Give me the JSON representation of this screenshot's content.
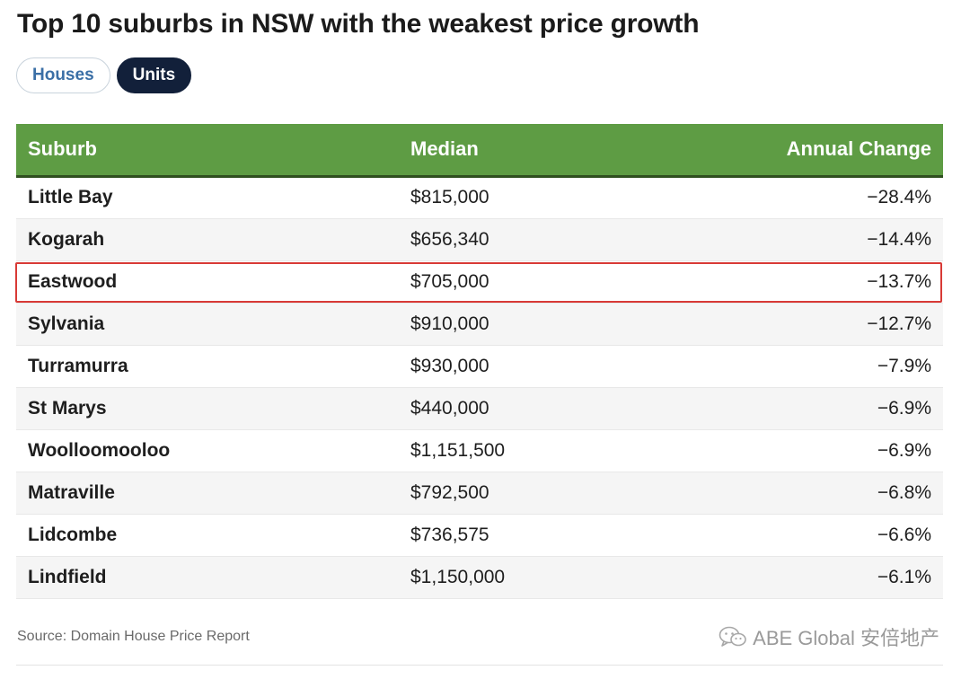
{
  "title": "Top 10 suburbs in NSW with the weakest price growth",
  "tabs": [
    {
      "label": "Houses",
      "active": false
    },
    {
      "label": "Units",
      "active": true
    }
  ],
  "table": {
    "headers": [
      "Suburb",
      "Median",
      "Annual Change"
    ],
    "rows": [
      {
        "suburb": "Little Bay",
        "median": "$815,000",
        "change": "−28.4%"
      },
      {
        "suburb": "Kogarah",
        "median": "$656,340",
        "change": "−14.4%"
      },
      {
        "suburb": "Eastwood",
        "median": "$705,000",
        "change": "−13.7%",
        "highlighted": true
      },
      {
        "suburb": "Sylvania",
        "median": "$910,000",
        "change": "−12.7%"
      },
      {
        "suburb": "Turramurra",
        "median": "$930,000",
        "change": "−7.9%"
      },
      {
        "suburb": "St Marys",
        "median": "$440,000",
        "change": "−6.9%"
      },
      {
        "suburb": "Woolloomooloo",
        "median": "$1,151,500",
        "change": "−6.9%"
      },
      {
        "suburb": "Matraville",
        "median": "$792,500",
        "change": "−6.8%"
      },
      {
        "suburb": "Lidcombe",
        "median": "$736,575",
        "change": "−6.6%"
      },
      {
        "suburb": "Lindfield",
        "median": "$1,150,000",
        "change": "−6.1%"
      }
    ]
  },
  "source": "Source: Domain House Price Report",
  "watermark": "ABE Global 安倍地产",
  "colors": {
    "header_bg": "#5e9c44",
    "active_tab_bg": "#12203a",
    "highlight_border": "#d83a36"
  },
  "icons": {
    "watermark": "wechat-icon"
  }
}
